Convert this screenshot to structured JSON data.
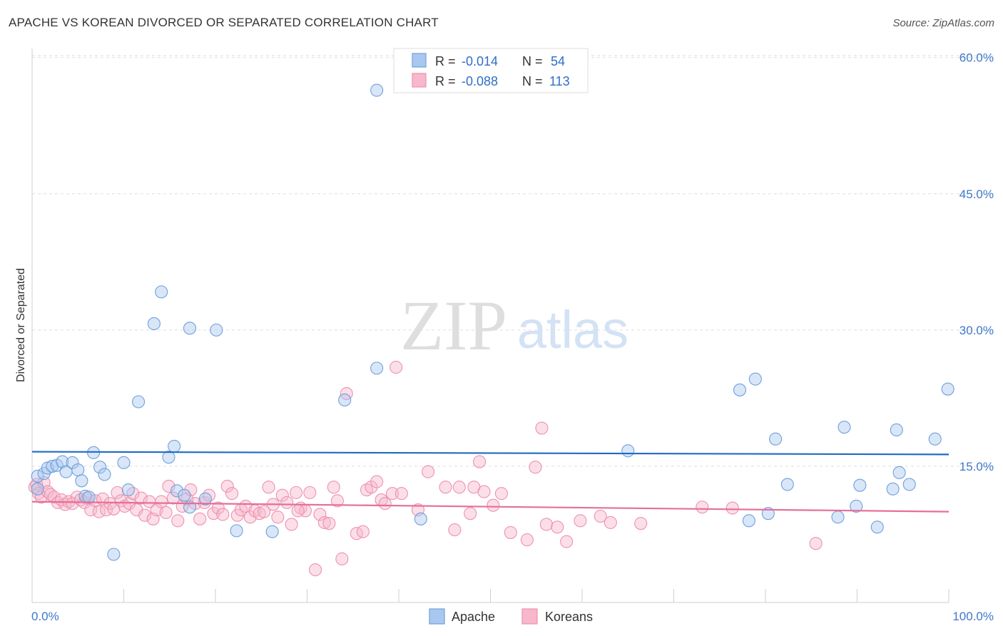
{
  "header": {
    "title": "APACHE VS KOREAN DIVORCED OR SEPARATED CORRELATION CHART",
    "source": "Source: ZipAtlas.com"
  },
  "watermark": {
    "zip": "ZIP",
    "atlas": "atlas"
  },
  "colors": {
    "apache_fill": "#a9c8ef",
    "apache_stroke": "#6fa0dc",
    "apache_line": "#1f6ac6",
    "koreans_fill": "#f7b8cc",
    "koreans_stroke": "#ee91ae",
    "koreans_line": "#e56f98",
    "axis_label": "#3f78c8",
    "grid": "#dddddd"
  },
  "legend_top": {
    "rows": [
      {
        "r_label": "R =",
        "r_value": "-0.014",
        "n_label": "N =",
        "n_value": "54"
      },
      {
        "r_label": "R =",
        "r_value": "-0.088",
        "n_label": "N =",
        "n_value": "113"
      }
    ]
  },
  "chart_data": {
    "type": "scatter",
    "title": "APACHE VS KOREAN DIVORCED OR SEPARATED CORRELATION CHART",
    "xlabel": "",
    "ylabel": "Divorced or Separated",
    "xlim": [
      0,
      100
    ],
    "ylim": [
      0,
      61
    ],
    "x_tick_labels": [
      "0.0%",
      "100.0%"
    ],
    "y_ticks": [
      15,
      30,
      45,
      60
    ],
    "y_tick_labels": [
      "15.0%",
      "30.0%",
      "45.0%",
      "60.0%"
    ],
    "grid": "horizontal-dashed",
    "legend": "bottom-center",
    "series": [
      {
        "name": "Apache",
        "r": -0.014,
        "n": 54,
        "trend": [
          [
            0,
            16.6
          ],
          [
            100,
            16.3
          ]
        ],
        "points": [
          [
            0.6,
            13.9
          ],
          [
            0.6,
            12.5
          ],
          [
            1.3,
            14.2
          ],
          [
            1.7,
            14.8
          ],
          [
            2.2,
            15.0
          ],
          [
            2.7,
            15.1
          ],
          [
            3.3,
            15.5
          ],
          [
            3.7,
            14.4
          ],
          [
            4.4,
            15.4
          ],
          [
            5.0,
            14.6
          ],
          [
            5.4,
            13.4
          ],
          [
            5.8,
            11.7
          ],
          [
            6.2,
            11.6
          ],
          [
            6.7,
            16.5
          ],
          [
            7.4,
            14.9
          ],
          [
            7.9,
            14.1
          ],
          [
            8.9,
            5.3
          ],
          [
            10.0,
            15.4
          ],
          [
            10.5,
            12.4
          ],
          [
            11.6,
            22.1
          ],
          [
            13.3,
            30.7
          ],
          [
            14.1,
            34.2
          ],
          [
            14.9,
            16.0
          ],
          [
            15.5,
            17.2
          ],
          [
            15.8,
            12.3
          ],
          [
            16.6,
            11.8
          ],
          [
            17.2,
            10.5
          ],
          [
            17.2,
            30.2
          ],
          [
            18.9,
            11.4
          ],
          [
            20.1,
            30.0
          ],
          [
            22.3,
            7.9
          ],
          [
            26.2,
            7.8
          ],
          [
            34.1,
            22.3
          ],
          [
            37.6,
            25.8
          ],
          [
            37.6,
            56.4
          ],
          [
            42.4,
            9.2
          ],
          [
            65.0,
            16.7
          ],
          [
            77.2,
            23.4
          ],
          [
            78.2,
            9.0
          ],
          [
            78.9,
            24.6
          ],
          [
            80.3,
            9.8
          ],
          [
            81.1,
            18.0
          ],
          [
            82.4,
            13.0
          ],
          [
            87.9,
            9.4
          ],
          [
            88.6,
            19.3
          ],
          [
            89.9,
            10.6
          ],
          [
            90.3,
            12.9
          ],
          [
            92.2,
            8.3
          ],
          [
            93.9,
            12.5
          ],
          [
            94.3,
            19.0
          ],
          [
            94.6,
            14.3
          ],
          [
            95.7,
            13.0
          ],
          [
            98.5,
            18.0
          ],
          [
            99.9,
            23.5
          ]
        ]
      },
      {
        "name": "Koreans",
        "r": -0.088,
        "n": 113,
        "trend": [
          [
            0,
            11.1
          ],
          [
            100,
            10.0
          ]
        ],
        "points": [
          [
            0.3,
            12.7
          ],
          [
            0.5,
            13.0
          ],
          [
            0.7,
            12.0
          ],
          [
            1.0,
            11.6
          ],
          [
            1.3,
            13.2
          ],
          [
            1.7,
            12.2
          ],
          [
            2.0,
            11.9
          ],
          [
            2.4,
            11.6
          ],
          [
            2.8,
            11.0
          ],
          [
            3.2,
            11.3
          ],
          [
            3.6,
            10.8
          ],
          [
            4.0,
            11.1
          ],
          [
            4.4,
            10.9
          ],
          [
            4.9,
            11.6
          ],
          [
            5.3,
            11.3
          ],
          [
            5.7,
            11.0
          ],
          [
            6.0,
            11.5
          ],
          [
            6.4,
            10.2
          ],
          [
            6.9,
            11.2
          ],
          [
            7.3,
            10.0
          ],
          [
            7.7,
            11.4
          ],
          [
            8.1,
            10.2
          ],
          [
            8.5,
            10.9
          ],
          [
            8.9,
            10.3
          ],
          [
            9.3,
            12.1
          ],
          [
            9.7,
            11.2
          ],
          [
            10.1,
            10.6
          ],
          [
            10.6,
            10.9
          ],
          [
            11.0,
            12.0
          ],
          [
            11.4,
            10.2
          ],
          [
            11.9,
            11.5
          ],
          [
            12.3,
            9.6
          ],
          [
            12.8,
            11.1
          ],
          [
            13.2,
            9.2
          ],
          [
            13.6,
            10.2
          ],
          [
            14.1,
            11.1
          ],
          [
            14.6,
            9.9
          ],
          [
            14.9,
            12.8
          ],
          [
            15.4,
            11.5
          ],
          [
            15.9,
            9.0
          ],
          [
            16.4,
            10.6
          ],
          [
            16.9,
            11.4
          ],
          [
            17.3,
            12.4
          ],
          [
            17.8,
            10.9
          ],
          [
            18.3,
            9.2
          ],
          [
            18.8,
            11.0
          ],
          [
            19.3,
            11.8
          ],
          [
            19.8,
            9.8
          ],
          [
            20.3,
            10.4
          ],
          [
            20.8,
            9.7
          ],
          [
            21.3,
            12.8
          ],
          [
            21.8,
            12.0
          ],
          [
            22.4,
            9.6
          ],
          [
            22.8,
            10.2
          ],
          [
            23.3,
            10.6
          ],
          [
            23.8,
            9.4
          ],
          [
            24.3,
            10.1
          ],
          [
            24.8,
            9.8
          ],
          [
            25.3,
            10.0
          ],
          [
            25.8,
            12.7
          ],
          [
            26.3,
            10.8
          ],
          [
            26.8,
            9.4
          ],
          [
            27.3,
            11.8
          ],
          [
            27.8,
            11.0
          ],
          [
            28.3,
            8.6
          ],
          [
            28.8,
            12.1
          ],
          [
            29.3,
            10.4
          ],
          [
            29.8,
            10.1
          ],
          [
            30.3,
            12.1
          ],
          [
            30.9,
            3.6
          ],
          [
            31.4,
            9.7
          ],
          [
            31.9,
            8.8
          ],
          [
            32.4,
            8.7
          ],
          [
            32.9,
            12.7
          ],
          [
            33.3,
            11.2
          ],
          [
            33.8,
            4.8
          ],
          [
            34.3,
            23.0
          ],
          [
            35.4,
            7.6
          ],
          [
            36.1,
            7.8
          ],
          [
            36.5,
            12.4
          ],
          [
            37.0,
            12.7
          ],
          [
            37.6,
            13.3
          ],
          [
            38.1,
            11.3
          ],
          [
            38.5,
            10.9
          ],
          [
            39.3,
            12.0
          ],
          [
            39.7,
            25.9
          ],
          [
            40.3,
            12.0
          ],
          [
            42.1,
            10.2
          ],
          [
            43.2,
            14.4
          ],
          [
            45.1,
            12.7
          ],
          [
            46.1,
            8.0
          ],
          [
            46.6,
            12.7
          ],
          [
            47.8,
            9.8
          ],
          [
            48.2,
            12.7
          ],
          [
            48.8,
            15.5
          ],
          [
            49.3,
            12.2
          ],
          [
            50.3,
            10.7
          ],
          [
            51.2,
            12.0
          ],
          [
            52.2,
            7.7
          ],
          [
            54.0,
            6.9
          ],
          [
            54.9,
            14.9
          ],
          [
            55.6,
            19.2
          ],
          [
            56.1,
            8.6
          ],
          [
            57.3,
            8.3
          ],
          [
            58.3,
            6.7
          ],
          [
            59.8,
            9.0
          ],
          [
            62.0,
            9.5
          ],
          [
            63.1,
            8.8
          ],
          [
            66.4,
            8.7
          ],
          [
            73.1,
            10.5
          ],
          [
            76.4,
            10.4
          ],
          [
            85.5,
            6.5
          ],
          [
            29.0,
            10.1
          ]
        ]
      }
    ]
  }
}
